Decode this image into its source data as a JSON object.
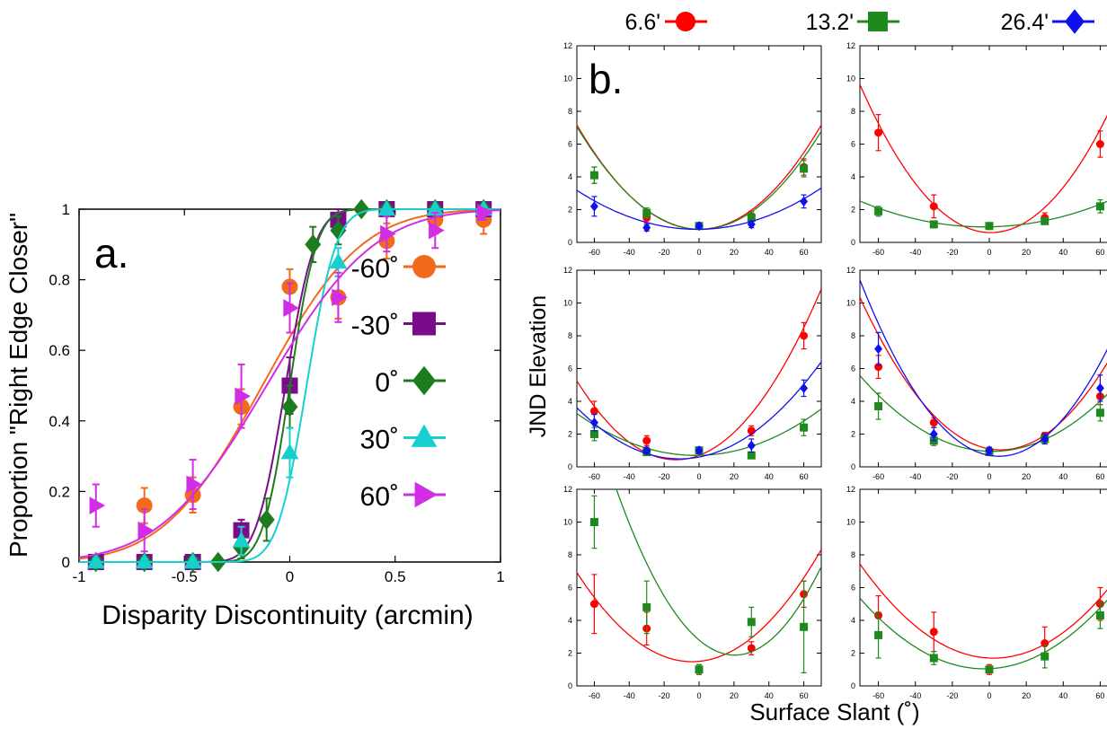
{
  "colors": {
    "red": "#ff0000",
    "green": "#1e8a1e",
    "blue": "#1010ee",
    "orange": "#f26a1b",
    "purple": "#7a0c8c",
    "dgreen": "#1d7c1d",
    "cyan": "#18cfcf",
    "magenta": "#d12de6"
  },
  "chart_data": [
    {
      "type": "scatter",
      "panel_label": "a.",
      "xlabel": "Disparity Discontinuity (arcmin)",
      "ylabel": "Proportion \"Right Edge Closer\"",
      "xlim": [
        -1,
        1
      ],
      "ylim": [
        0,
        1
      ],
      "xticks": [
        "-1",
        "-0.5",
        "0",
        "0.5",
        "1"
      ],
      "yticks": [
        "0",
        "0.2",
        "0.4",
        "0.6",
        "0.8",
        "1"
      ],
      "grid": false,
      "legend_position": "right",
      "series": [
        {
          "name": "-60˚",
          "marker": "circle",
          "color": "#f26a1b",
          "mu": -0.13,
          "sigma": 0.37,
          "x": [
            -0.92,
            -0.69,
            -0.46,
            -0.23,
            0,
            0.23,
            0.46,
            0.69,
            0.92
          ],
          "y": [
            0,
            0.16,
            0.19,
            0.44,
            0.78,
            0.75,
            0.91,
            0.97,
            0.97
          ],
          "err": [
            0.02,
            0.05,
            0.05,
            0.05,
            0.05,
            0.06,
            0.05,
            0.04,
            0.04
          ]
        },
        {
          "name": "-30˚",
          "marker": "square",
          "color": "#7a0c8c",
          "mu": -0.02,
          "sigma": 0.11,
          "x": [
            -0.92,
            -0.69,
            -0.46,
            -0.23,
            0,
            0.23,
            0.46,
            0.69,
            0.92
          ],
          "y": [
            0,
            0,
            0,
            0.09,
            0.5,
            0.97,
            1,
            1,
            1
          ],
          "err": [
            0.01,
            0.01,
            0.01,
            0.03,
            0.08,
            0.03,
            0.01,
            0.01,
            0.01
          ]
        },
        {
          "name": "0˚",
          "marker": "diamond",
          "color": "#1d7c1d",
          "mu": 0.0,
          "sigma": 0.1,
          "x": [
            -0.92,
            -0.69,
            -0.46,
            -0.34,
            -0.23,
            -0.11,
            0,
            0.11,
            0.23,
            0.34,
            0.46,
            0.69,
            0.92
          ],
          "y": [
            0,
            0,
            0,
            0,
            0.04,
            0.12,
            0.44,
            0.9,
            0.94,
            1,
            1,
            1,
            1
          ],
          "err": [
            0.01,
            0.01,
            0.01,
            0.01,
            0.03,
            0.06,
            0.06,
            0.05,
            0.04,
            0.01,
            0.01,
            0.01,
            0.01
          ]
        },
        {
          "name": "30˚",
          "marker": "triangle-up",
          "color": "#18cfcf",
          "mu": 0.08,
          "sigma": 0.11,
          "x": [
            -0.92,
            -0.69,
            -0.46,
            -0.23,
            0,
            0.23,
            0.46,
            0.69,
            0.92
          ],
          "y": [
            0,
            0,
            0,
            0.06,
            0.31,
            0.85,
            1,
            1,
            1
          ],
          "err": [
            0.01,
            0.01,
            0.01,
            0.04,
            0.07,
            0.04,
            0.01,
            0.01,
            0.01
          ]
        },
        {
          "name": "60˚",
          "marker": "triangle-right",
          "color": "#d12de6",
          "mu": -0.11,
          "sigma": 0.4,
          "x": [
            -0.92,
            -0.69,
            -0.46,
            -0.23,
            0,
            0.23,
            0.46,
            0.69,
            0.92
          ],
          "y": [
            0.16,
            0.09,
            0.22,
            0.47,
            0.72,
            0.75,
            0.93,
            0.94,
            0.99
          ],
          "err": [
            0.06,
            0.06,
            0.07,
            0.09,
            0.07,
            0.07,
            0.05,
            0.05,
            0.02
          ]
        }
      ]
    },
    {
      "type": "scatter",
      "panel_label": "b.",
      "xlabel": "Surface Slant (˚)",
      "ylabel": "JND Elevation",
      "xlim": [
        -70,
        70
      ],
      "ylim": [
        0,
        12
      ],
      "xticks": [
        "-60",
        "-40",
        "-20",
        "0",
        "20",
        "40",
        "60"
      ],
      "yticks": [
        "0",
        "2",
        "4",
        "6",
        "8",
        "10",
        "12"
      ],
      "grid": false,
      "legend_position": "top",
      "legend": [
        {
          "name": "6.6'",
          "marker": "circle",
          "color": "#ff0000"
        },
        {
          "name": "13.2'",
          "marker": "square",
          "color": "#1e8a1e"
        },
        {
          "name": "26.4'",
          "marker": "diamond",
          "color": "#1010ee"
        }
      ],
      "panels": [
        {
          "series": [
            {
              "name": "6.6'",
              "x": [
                -60,
                -30,
                0,
                30,
                60
              ],
              "y": [
                4.1,
                1.5,
                1.0,
                1.6,
                4.6
              ],
              "err": [
                0.5,
                0.3,
                0.2,
                0.3,
                0.5
              ],
              "fit": [
                0.0013,
                0,
                0.8
              ]
            },
            {
              "name": "13.2'",
              "x": [
                -60,
                -30,
                0,
                30,
                60
              ],
              "y": [
                4.1,
                1.8,
                1.0,
                1.5,
                4.5
              ],
              "err": [
                0.5,
                0.3,
                0.2,
                0.3,
                0.5
              ],
              "fit": [
                0.00125,
                -0.002,
                0.8
              ]
            },
            {
              "name": "26.4'",
              "x": [
                -60,
                -30,
                0,
                30,
                60
              ],
              "y": [
                2.2,
                0.9,
                1.0,
                1.1,
                2.5
              ],
              "err": [
                0.6,
                0.2,
                0.2,
                0.2,
                0.4
              ],
              "fit": [
                0.0005,
                0.001,
                0.8
              ]
            }
          ]
        },
        {
          "series": [
            {
              "name": "6.6'",
              "x": [
                -60,
                -30,
                0,
                30,
                60
              ],
              "y": [
                6.7,
                2.2,
                1.0,
                1.5,
                6.0
              ],
              "err": [
                1.1,
                0.7,
                0.2,
                0.3,
                0.8
              ],
              "fit": [
                0.0018,
                -0.003,
                0.6
              ]
            },
            {
              "name": "13.2'",
              "x": [
                -60,
                -30,
                0,
                30,
                60
              ],
              "y": [
                1.9,
                1.1,
                1.0,
                1.3,
                2.2
              ],
              "err": [
                0.3,
                0.2,
                0.1,
                0.2,
                0.4
              ],
              "fit": [
                0.00035,
                0.002,
                0.95
              ]
            }
          ]
        },
        {
          "series": [
            {
              "name": "6.6'",
              "x": [
                -60,
                -30,
                0,
                30,
                60
              ],
              "y": [
                3.4,
                1.6,
                1.0,
                2.2,
                8.0
              ],
              "err": [
                0.6,
                0.3,
                0.2,
                0.3,
                0.8
              ],
              "fit": [
                0.0015,
                0.04,
                0.7
              ]
            },
            {
              "name": "13.2'",
              "x": [
                -60,
                -30,
                0,
                30,
                60
              ],
              "y": [
                2.0,
                0.9,
                1.0,
                0.7,
                2.4
              ],
              "err": [
                0.4,
                0.2,
                0.2,
                0.1,
                0.5
              ],
              "fit": [
                0.00055,
                0.002,
                0.7
              ]
            },
            {
              "name": "26.4'",
              "x": [
                -60,
                -30,
                0,
                30,
                60
              ],
              "y": [
                2.7,
                1.0,
                1.0,
                1.3,
                4.8
              ],
              "err": [
                0.5,
                0.2,
                0.2,
                0.4,
                0.5
              ],
              "fit": [
                0.0009,
                0.02,
                0.6
              ]
            }
          ]
        },
        {
          "series": [
            {
              "name": "6.6'",
              "x": [
                -60,
                -30,
                0,
                30,
                60
              ],
              "y": [
                6.1,
                2.7,
                1.0,
                1.9,
                4.3
              ],
              "err": [
                0.7,
                0.3,
                0.2,
                0.2,
                0.5
              ],
              "fit": [
                0.0016,
                -0.02,
                1.1
              ]
            },
            {
              "name": "13.2'",
              "x": [
                -60,
                -30,
                0,
                30,
                60
              ],
              "y": [
                3.7,
                1.6,
                0.9,
                1.7,
                3.3
              ],
              "err": [
                0.8,
                0.3,
                0.2,
                0.3,
                0.5
              ],
              "fit": [
                0.0009,
                -0.003,
                0.95
              ]
            },
            {
              "name": "26.4'",
              "x": [
                -60,
                -30,
                0,
                30,
                60
              ],
              "y": [
                7.2,
                2.0,
                1.0,
                1.7,
                4.8
              ],
              "err": [
                1.0,
                0.4,
                0.2,
                0.3,
                0.8
              ],
              "fit": [
                0.0019,
                -0.02,
                0.7
              ]
            }
          ]
        },
        {
          "series": [
            {
              "name": "6.6'",
              "x": [
                -60,
                -30,
                0,
                30,
                60
              ],
              "y": [
                5.0,
                3.5,
                1.0,
                2.3,
                5.6
              ],
              "err": [
                1.8,
                1.0,
                0.3,
                0.4,
                0.8
              ],
              "fit": [
                0.00125,
                0.01,
                1.5
              ]
            },
            {
              "name": "13.2'",
              "x": [
                -60,
                -30,
                0,
                30,
                60
              ],
              "y": [
                10.0,
                4.8,
                1.0,
                3.9,
                3.6
              ],
              "err": [
                1.6,
                1.6,
                0.3,
                0.9,
                2.8
              ],
              "fit": [
                0.0022,
                -0.09,
                2.8
              ]
            }
          ]
        },
        {
          "series": [
            {
              "name": "6.6'",
              "x": [
                -60,
                -30,
                0,
                30,
                60
              ],
              "y": [
                4.3,
                3.3,
                1.0,
                2.6,
                5.0
              ],
              "err": [
                1.2,
                1.2,
                0.3,
                1.0,
                1.0
              ],
              "fit": [
                0.0011,
                -0.005,
                1.7
              ]
            },
            {
              "name": "13.2'",
              "x": [
                -60,
                -30,
                0,
                30,
                60
              ],
              "y": [
                3.1,
                1.7,
                1.0,
                1.8,
                4.3
              ],
              "err": [
                1.4,
                0.4,
                0.2,
                0.7,
                0.8
              ],
              "fit": [
                0.00095,
                0.005,
                1.05
              ]
            }
          ]
        }
      ]
    }
  ]
}
